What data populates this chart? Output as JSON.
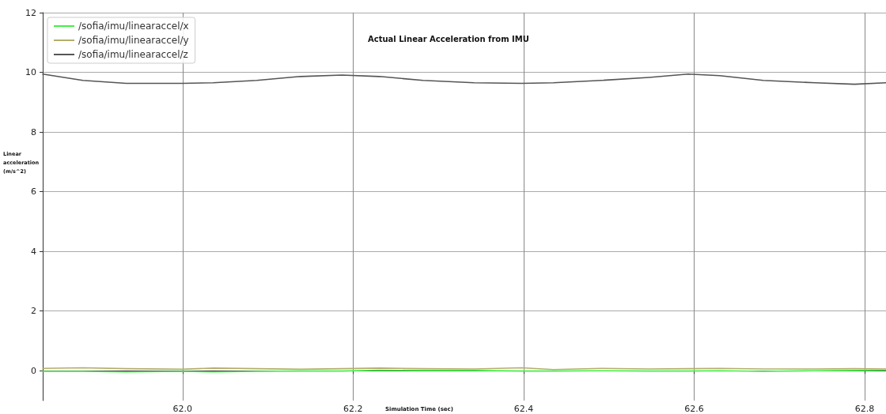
{
  "chart_data": {
    "type": "line",
    "title": "Actual Linear Acceleration from IMU",
    "xlabel": "Simulation Time (sec)",
    "ylabel": "Linear\nacceleration\n(m/s^2)",
    "x": [
      61.836,
      61.883,
      61.934,
      62.0,
      62.036,
      62.087,
      62.138,
      62.187,
      62.231,
      62.282,
      62.342,
      62.398,
      62.435,
      62.491,
      62.547,
      62.593,
      62.63,
      62.681,
      62.742,
      62.788,
      62.825
    ],
    "series": [
      {
        "name": "/sofia/imu/linearaccel/x",
        "color": "#44ee44",
        "values": [
          -0.02,
          -0.02,
          -0.04,
          -0.02,
          -0.04,
          -0.02,
          -0.01,
          -0.01,
          0.02,
          0.01,
          0.01,
          -0.01,
          -0.01,
          0,
          -0.01,
          -0.01,
          0,
          -0.02,
          0,
          0.01,
          0.02
        ]
      },
      {
        "name": "/sofia/imu/linearaccel/y",
        "color": "#b5ad6b",
        "values": [
          0.08,
          0.1,
          0.07,
          0.05,
          0.09,
          0.07,
          0.05,
          0.07,
          0.09,
          0.07,
          0.06,
          0.1,
          0.04,
          0.08,
          0.06,
          0.07,
          0.08,
          0.06,
          0.06,
          0.07,
          0.06
        ]
      },
      {
        "name": "/sofia/imu/linearaccel/z",
        "color": "#555555",
        "values": [
          9.94,
          9.73,
          9.63,
          9.63,
          9.65,
          9.73,
          9.86,
          9.91,
          9.86,
          9.73,
          9.65,
          9.63,
          9.65,
          9.73,
          9.83,
          9.94,
          9.89,
          9.73,
          9.65,
          9.6,
          9.65
        ]
      }
    ],
    "xlim": [
      61.836,
      62.825
    ],
    "ylim": [
      -1,
      12
    ],
    "xticks": [
      {
        "value": 62.0,
        "label": "62.0"
      },
      {
        "value": 62.2,
        "label": "62.2"
      },
      {
        "value": 62.4,
        "label": "62.4"
      },
      {
        "value": 62.6,
        "label": "62.6"
      },
      {
        "value": 62.8,
        "label": "62.8"
      }
    ],
    "yticks": [
      0,
      2,
      4,
      6,
      8,
      10,
      12
    ],
    "grid": true,
    "legend": "top left",
    "marker": "none",
    "line_style": "solid"
  }
}
